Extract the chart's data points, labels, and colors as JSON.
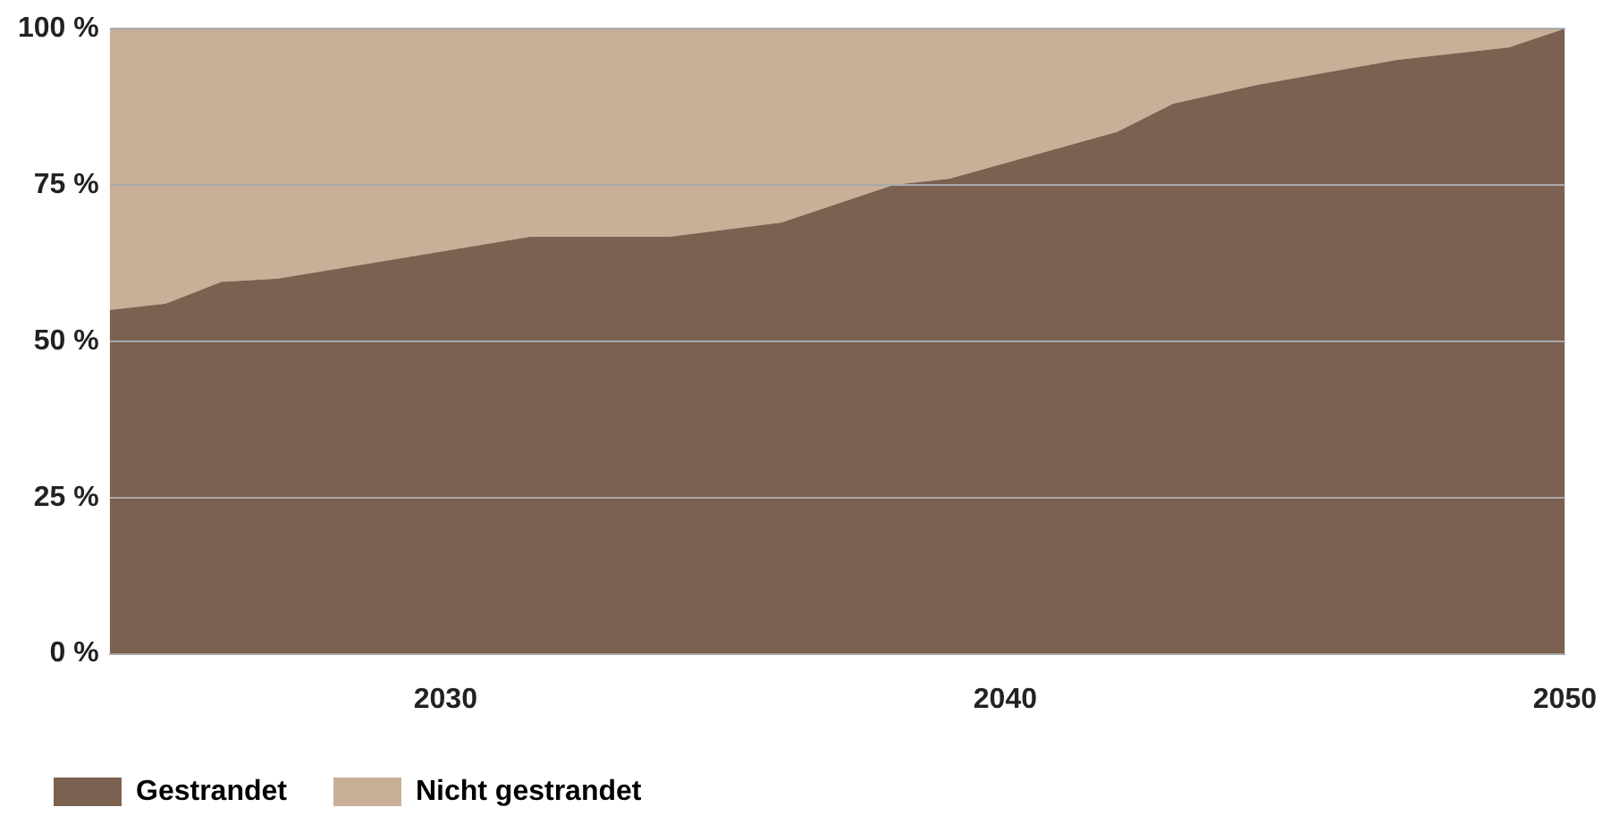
{
  "chart_data": {
    "type": "area",
    "stacked": true,
    "x": [
      2024,
      2025,
      2026,
      2027,
      2031.5,
      2034,
      2036,
      2038,
      2039,
      2042,
      2043,
      2044.5,
      2047,
      2049,
      2050
    ],
    "series": [
      {
        "name": "Gestrandet",
        "color": "#7a6150",
        "values": [
          55,
          56,
          59.5,
          60,
          66.7,
          66.7,
          69,
          75,
          76,
          83.5,
          88,
          91,
          95,
          97,
          100
        ]
      },
      {
        "name": "Nicht gestrandet",
        "color": "#c8af97",
        "values": [
          45,
          44,
          40.5,
          40,
          33.3,
          33.3,
          31,
          25,
          24,
          16.5,
          12,
          9,
          5,
          3,
          0
        ]
      }
    ],
    "xlim": [
      2024,
      2050
    ],
    "xticks": [
      2030,
      2040,
      2050
    ],
    "ylim": [
      0,
      100
    ],
    "yticks": [
      {
        "value": 0,
        "label": "0 %"
      },
      {
        "value": 25,
        "label": "25 %"
      },
      {
        "value": 50,
        "label": "50 %"
      },
      {
        "value": 75,
        "label": "75 %"
      },
      {
        "value": 100,
        "label": "100 %"
      }
    ],
    "grid": "y",
    "legend": "bottom left"
  }
}
